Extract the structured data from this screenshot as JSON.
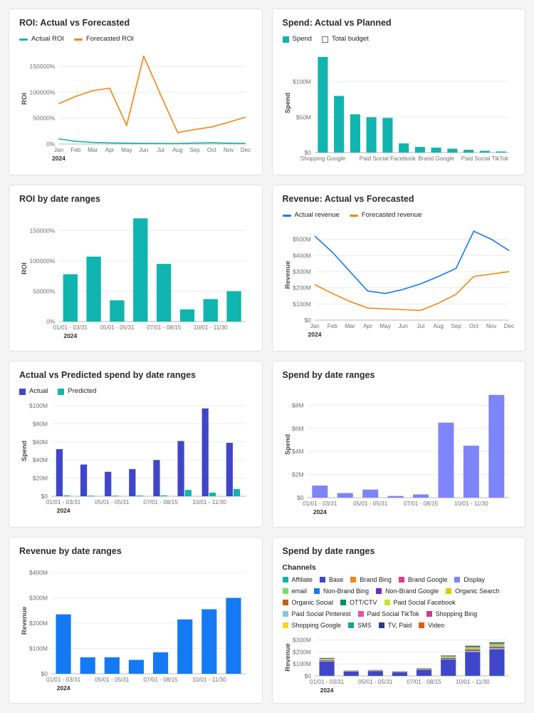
{
  "page": {
    "background": "#f5f5f5",
    "card_background": "#ffffff"
  },
  "palette": {
    "teal": "#0FB5AE",
    "orange": "#F68511",
    "indigo": "#4046CA",
    "periwinkle": "#7E84FA",
    "blue": "#147AF3"
  },
  "chart_data": [
    {
      "type": "line",
      "title": "ROI: Actual vs Forecasted",
      "ylabel": "ROI",
      "year_label": "2024",
      "categories": [
        "Jan",
        "Feb",
        "Mar",
        "Apr",
        "May",
        "Jun",
        "Jul",
        "Aug",
        "Sep",
        "Oct",
        "Nov",
        "Dec"
      ],
      "ylim": [
        0,
        175000
      ],
      "y_ticks": [
        {
          "v": 0,
          "label": "0%"
        },
        {
          "v": 50000,
          "label": "50000%"
        },
        {
          "v": 100000,
          "label": "100000%"
        },
        {
          "v": 150000,
          "label": "150000%"
        }
      ],
      "legend": [
        {
          "label": "Actual ROI",
          "color": "#0FB5AE",
          "swatch": "line"
        },
        {
          "label": "Forecasted ROI",
          "color": "#F68511",
          "swatch": "line"
        }
      ],
      "series": [
        {
          "name": "Actual ROI",
          "color": "#0FB5AE",
          "values": [
            10000,
            5200,
            3200,
            2100,
            1600,
            1300,
            1100,
            1000,
            1900,
            2500,
            1600,
            1200
          ]
        },
        {
          "name": "Forecasted ROI",
          "color": "#F68511",
          "values": [
            78000,
            92000,
            103000,
            108000,
            36000,
            170000,
            95000,
            22000,
            28000,
            33000,
            42000,
            52000
          ]
        }
      ]
    },
    {
      "type": "bar",
      "title": "Spend: Actual vs Planned",
      "ylabel": "Spend",
      "categories": [
        "Shopping Google",
        "",
        "",
        "",
        "Paid Social Facebook",
        "",
        "",
        "Brand Google",
        "",
        "",
        "Paid Social TikTok",
        ""
      ],
      "ylim": [
        0,
        140
      ],
      "y_ticks": [
        {
          "v": 0,
          "label": "$0"
        },
        {
          "v": 50,
          "label": "$50M"
        },
        {
          "v": 100,
          "label": "$100M"
        }
      ],
      "legend": [
        {
          "label": "Spend",
          "color": "#0FB5AE",
          "swatch": "square"
        },
        {
          "label": "Total budget",
          "color": "#FFFFFF",
          "swatch": "outline"
        }
      ],
      "bar_color": "#0FB5AE",
      "values": [
        135,
        80,
        54,
        50,
        49,
        13,
        8,
        7,
        5.5,
        4,
        2.5,
        1.5
      ]
    },
    {
      "type": "bar",
      "title": "ROI by date ranges",
      "ylabel": "ROI",
      "year_label": "2024",
      "categories": [
        "01/01 - 03/31",
        "",
        "05/01 - 05/31",
        "",
        "07/01 - 08/15",
        "",
        "10/01 - 11/30",
        ""
      ],
      "ylim": [
        0,
        175000
      ],
      "y_ticks": [
        {
          "v": 0,
          "label": "0%"
        },
        {
          "v": 50000,
          "label": "50000%"
        },
        {
          "v": 100000,
          "label": "100000%"
        },
        {
          "v": 150000,
          "label": "150000%"
        }
      ],
      "bar_color": "#0FB5AE",
      "values": [
        78000,
        107000,
        35000,
        170000,
        95000,
        20000,
        37000,
        50000
      ]
    },
    {
      "type": "line",
      "title": "Revenue: Actual vs Forecasted",
      "ylabel": "Revenue",
      "year_label": "2024",
      "categories": [
        "Jan",
        "Feb",
        "Mar",
        "Apr",
        "May",
        "Jun",
        "Jul",
        "Aug",
        "Sep",
        "Oct",
        "Nov",
        "Dec"
      ],
      "ylim": [
        0,
        560
      ],
      "y_ticks": [
        {
          "v": 0,
          "label": "$0"
        },
        {
          "v": 100,
          "label": "$100M"
        },
        {
          "v": 200,
          "label": "$200M"
        },
        {
          "v": 300,
          "label": "$300M"
        },
        {
          "v": 400,
          "label": "$400M"
        },
        {
          "v": 500,
          "label": "$500M"
        }
      ],
      "legend": [
        {
          "label": "Actual revenue",
          "color": "#147AF3",
          "swatch": "line"
        },
        {
          "label": "Forecasted revenue",
          "color": "#F68511",
          "swatch": "line"
        }
      ],
      "series": [
        {
          "name": "Actual revenue",
          "color": "#147AF3",
          "values": [
            520,
            420,
            300,
            180,
            165,
            190,
            225,
            270,
            320,
            550,
            500,
            430
          ]
        },
        {
          "name": "Forecasted revenue",
          "color": "#F68511",
          "values": [
            220,
            165,
            115,
            75,
            70,
            65,
            60,
            105,
            160,
            270,
            285,
            300
          ]
        }
      ]
    },
    {
      "type": "grouped-bar",
      "title": "Actual vs Predicted spend by date ranges",
      "ylabel": "Spend",
      "year_label": "2024",
      "categories": [
        "01/01 - 03/31",
        "",
        "05/01 - 05/31",
        "",
        "07/01 - 08/15",
        "",
        "10/01 - 11/30",
        ""
      ],
      "ylim": [
        0,
        100
      ],
      "y_ticks": [
        {
          "v": 0,
          "label": "$0"
        },
        {
          "v": 20,
          "label": "$20M"
        },
        {
          "v": 40,
          "label": "$40M"
        },
        {
          "v": 60,
          "label": "$60M"
        },
        {
          "v": 80,
          "label": "$80M"
        },
        {
          "v": 100,
          "label": "$100M"
        }
      ],
      "legend": [
        {
          "label": "Actual",
          "color": "#4046CA",
          "swatch": "square"
        },
        {
          "label": "Predicted",
          "color": "#0FB5AE",
          "swatch": "square"
        }
      ],
      "series": [
        {
          "name": "Actual",
          "color": "#4046CA",
          "values": [
            52,
            35,
            27,
            30,
            40,
            61,
            97,
            59
          ]
        },
        {
          "name": "Predicted",
          "color": "#0FB5AE",
          "values": [
            1,
            0.7,
            0.7,
            0.8,
            1,
            7,
            4,
            8
          ]
        }
      ]
    },
    {
      "type": "bar",
      "title": "Spend by date ranges",
      "ylabel": "Spend",
      "year_label": "2024",
      "categories": [
        "01/01 - 03/31",
        "",
        "05/01 - 05/31",
        "",
        "07/01 - 08/15",
        "",
        "10/01 - 11/30",
        ""
      ],
      "ylim": [
        0,
        9.2
      ],
      "y_ticks": [
        {
          "v": 0,
          "label": "$0"
        },
        {
          "v": 2,
          "label": "$2M"
        },
        {
          "v": 4,
          "label": "$4M"
        },
        {
          "v": 6,
          "label": "$6M"
        },
        {
          "v": 8,
          "label": "$8M"
        }
      ],
      "bar_color": "#7E84FA",
      "values": [
        1.05,
        0.4,
        0.7,
        0.15,
        0.28,
        6.5,
        4.5,
        8.9
      ]
    },
    {
      "type": "bar",
      "title": "Revenue by date ranges",
      "ylabel": "Revenue",
      "year_label": "2024",
      "categories": [
        "01/01 - 03/31",
        "",
        "05/01 - 05/31",
        "",
        "07/01 - 08/15",
        "",
        "10/01 - 11/30",
        ""
      ],
      "ylim": [
        0,
        420
      ],
      "y_ticks": [
        {
          "v": 0,
          "label": "$0"
        },
        {
          "v": 100,
          "label": "$100M"
        },
        {
          "v": 200,
          "label": "$200M"
        },
        {
          "v": 300,
          "label": "$300M"
        },
        {
          "v": 400,
          "label": "$400M"
        }
      ],
      "bar_color": "#147AF3",
      "values": [
        235,
        65,
        65,
        55,
        85,
        215,
        255,
        300
      ]
    },
    {
      "type": "stacked-bar",
      "title": "Spend by date ranges",
      "ylabel": "Revenue",
      "year_label": "2024",
      "legend_title": "Channels",
      "categories": [
        "01/01 - 03/31",
        "",
        "05/01 - 05/31",
        "",
        "07/01 - 08/15",
        "",
        "10/01 - 11/30",
        ""
      ],
      "ylim": [
        0,
        310
      ],
      "y_ticks": [
        {
          "v": 0,
          "label": "$0"
        },
        {
          "v": 100,
          "label": "$100M"
        },
        {
          "v": 200,
          "label": "$200M"
        },
        {
          "v": 300,
          "label": "$300M"
        }
      ],
      "series": [
        {
          "name": "Affiliate",
          "color": "#0FB5AE",
          "values": [
            1.5,
            0.4,
            0.5,
            0.4,
            0.7,
            1.6,
            2.5,
            3
          ]
        },
        {
          "name": "Base",
          "color": "#4046CA",
          "values": [
            118,
            36,
            40,
            31,
            51,
            135,
            196,
            218
          ]
        },
        {
          "name": "Brand Bing",
          "color": "#F68511",
          "values": [
            0.4,
            0.1,
            0.1,
            0.1,
            0.2,
            0.4,
            0.7,
            0.8
          ]
        },
        {
          "name": "Brand Google",
          "color": "#DE3D82",
          "values": [
            1.8,
            0.5,
            0.6,
            0.5,
            0.8,
            2,
            3,
            3.5
          ]
        },
        {
          "name": "Display",
          "color": "#7E84FA",
          "values": [
            1,
            0.3,
            0.3,
            0.3,
            0.5,
            1.1,
            1.8,
            2
          ]
        },
        {
          "name": "email",
          "color": "#72E06A",
          "values": [
            2.6,
            0.8,
            0.9,
            0.7,
            1.2,
            2.9,
            4.5,
            5
          ]
        },
        {
          "name": "Non-Brand Bing",
          "color": "#147AF3",
          "values": [
            0.9,
            0.3,
            0.3,
            0.2,
            0.4,
            1,
            1.6,
            1.8
          ]
        },
        {
          "name": "Non-Brand Google",
          "color": "#7326D3",
          "values": [
            4.5,
            1.4,
            1.5,
            1.2,
            2.1,
            5,
            7.8,
            8.7
          ]
        },
        {
          "name": "Organic Search",
          "color": "#E8C600",
          "values": [
            3.6,
            1.1,
            1.2,
            1,
            1.7,
            4,
            6.3,
            7
          ]
        },
        {
          "name": "Organic Social",
          "color": "#CB5D00",
          "values": [
            0.4,
            0.1,
            0.1,
            0.1,
            0.2,
            0.5,
            0.8,
            0.9
          ]
        },
        {
          "name": "OTT/CTV",
          "color": "#008F5D",
          "values": [
            0.9,
            0.3,
            0.3,
            0.2,
            0.4,
            1,
            1.6,
            1.8
          ]
        },
        {
          "name": "Paid Social Facebook",
          "color": "#BCE931",
          "values": [
            1.8,
            0.5,
            0.6,
            0.5,
            0.8,
            2,
            3.1,
            3.5
          ]
        },
        {
          "name": "Paid Social Pinterest",
          "color": "#7EC8E3",
          "values": [
            0.9,
            0.3,
            0.3,
            0.2,
            0.4,
            1,
            1.6,
            1.8
          ]
        },
        {
          "name": "Paid Social TikTok",
          "color": "#EC4DA4",
          "values": [
            0.4,
            0.1,
            0.1,
            0.1,
            0.2,
            0.5,
            0.8,
            0.9
          ]
        },
        {
          "name": "Shopping Bing",
          "color": "#D83790",
          "values": [
            0.4,
            0.1,
            0.1,
            0.1,
            0.2,
            0.5,
            0.8,
            0.9
          ]
        },
        {
          "name": "Shopping Google",
          "color": "#F5D818",
          "values": [
            2.6,
            0.8,
            0.9,
            0.7,
            1.2,
            2.9,
            4.6,
            5.2
          ]
        },
        {
          "name": "SMS",
          "color": "#12A594",
          "values": [
            4.5,
            1.4,
            1.5,
            1.2,
            2.1,
            5,
            7.9,
            8.8
          ]
        },
        {
          "name": "TV, Paid",
          "color": "#2D3A8C",
          "values": [
            2.6,
            0.8,
            0.9,
            0.7,
            1.2,
            2.9,
            4.6,
            5.2
          ]
        },
        {
          "name": "Video",
          "color": "#E8590C",
          "values": [
            1.8,
            0.5,
            0.6,
            0.5,
            0.8,
            2,
            3.1,
            3.5
          ]
        }
      ]
    }
  ]
}
